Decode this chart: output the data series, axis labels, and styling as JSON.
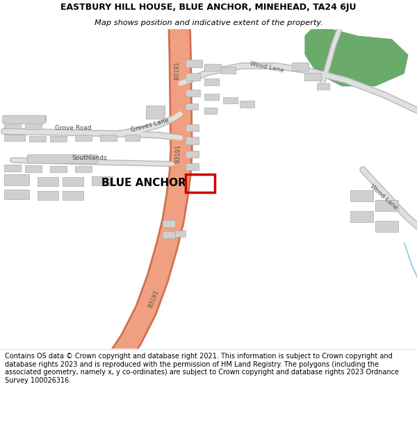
{
  "title_line1": "EASTBURY HILL HOUSE, BLUE ANCHOR, MINEHEAD, TA24 6JU",
  "title_line2": "Map shows position and indicative extent of the property.",
  "footer": "Contains OS data © Crown copyright and database right 2021. This information is subject to Crown copyright and database rights 2023 and is reproduced with the permission of HM Land Registry. The polygons (including the associated geometry, namely x, y co-ordinates) are subject to Crown copyright and database rights 2023 Ordnance Survey 100026316.",
  "map_bg": "#ffffff",
  "road_color": "#f0a080",
  "road_outline": "#d07050",
  "building_color": "#d0d0d0",
  "building_outline": "#aaaaaa",
  "green_area_color": "#6aaa6a",
  "plot_color": "#cc0000",
  "title_fontsize": 9.0,
  "subtitle_fontsize": 8.2,
  "footer_fontsize": 7.0
}
